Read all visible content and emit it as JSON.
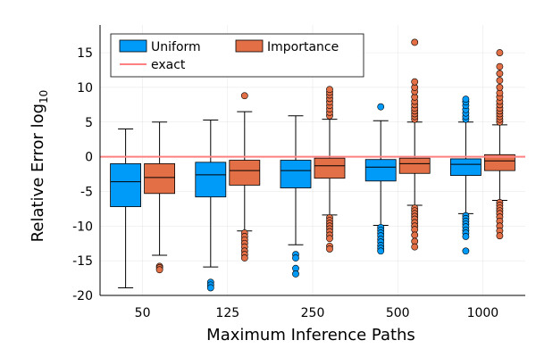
{
  "chart_data": {
    "type": "box",
    "xlabel": "Maximum Inference Paths",
    "ylabel_main": "Relative Error log",
    "ylabel_sub": "10",
    "ylim": [
      -20,
      19
    ],
    "yticks": [
      -20,
      -15,
      -10,
      -5,
      0,
      5,
      10,
      15
    ],
    "categories": [
      "50",
      "125",
      "250",
      "500",
      "1000"
    ],
    "exact_line": {
      "name": "exact",
      "y": 0,
      "color": "#ff8080"
    },
    "legend": {
      "position": "top-left",
      "columns": 2
    },
    "series": [
      {
        "name": "Uniform",
        "color": "#009af9",
        "boxes": [
          {
            "whisker_low": -18.9,
            "q1": -7.2,
            "median": -3.6,
            "q3": -1.0,
            "whisker_high": 4.0,
            "outliers": []
          },
          {
            "whisker_low": -15.9,
            "q1": -5.8,
            "median": -2.6,
            "q3": -0.8,
            "whisker_high": 5.3,
            "outliers": [
              -18.1,
              -18.5,
              -18.9
            ]
          },
          {
            "whisker_low": -12.7,
            "q1": -4.5,
            "median": -2.0,
            "q3": -0.5,
            "whisker_high": 5.9,
            "outliers": [
              -14.1,
              -14.6,
              -16.1,
              -16.9
            ]
          },
          {
            "whisker_low": -9.9,
            "q1": -3.5,
            "median": -1.5,
            "q3": -0.4,
            "whisker_high": 5.2,
            "outliers": [
              7.2,
              -10.2,
              -10.6,
              -11.0,
              -11.4,
              -11.9,
              -12.3,
              -12.8,
              -13.2,
              -13.6
            ]
          },
          {
            "whisker_low": -8.2,
            "q1": -2.7,
            "median": -1.1,
            "q3": -0.3,
            "whisker_high": 5.0,
            "outliers": [
              5.4,
              5.8,
              6.3,
              6.8,
              7.4,
              7.9,
              8.3,
              -8.5,
              -8.9,
              -9.3,
              -9.7,
              -10.1,
              -10.6,
              -11.0,
              -11.5,
              -13.6
            ]
          }
        ]
      },
      {
        "name": "Importance",
        "color": "#e26f46",
        "boxes": [
          {
            "whisker_low": -14.2,
            "q1": -5.3,
            "median": -3.0,
            "q3": -1.0,
            "whisker_high": 5.0,
            "outliers": [
              -15.8,
              -16.0,
              -16.3
            ]
          },
          {
            "whisker_low": -10.7,
            "q1": -4.1,
            "median": -2.0,
            "q3": -0.5,
            "whisker_high": 6.5,
            "outliers": [
              8.8,
              -11.0,
              -11.5,
              -12.0,
              -12.5,
              -13.0,
              -13.6,
              -14.1,
              -14.6
            ]
          },
          {
            "whisker_low": -8.4,
            "q1": -3.1,
            "median": -1.3,
            "q3": -0.2,
            "whisker_high": 5.4,
            "outliers": [
              5.9,
              6.4,
              6.9,
              7.4,
              7.9,
              8.4,
              8.9,
              9.3,
              9.7,
              -8.8,
              -9.2,
              -9.6,
              -10.0,
              -10.4,
              -10.8,
              -11.3,
              -11.8,
              -12.9,
              -13.3
            ]
          },
          {
            "whisker_low": -7.0,
            "q1": -2.4,
            "median": -1.0,
            "q3": -0.2,
            "whisker_high": 5.0,
            "outliers": [
              5.4,
              5.8,
              6.2,
              6.6,
              7.0,
              7.5,
              8.0,
              8.6,
              9.4,
              10.0,
              10.8,
              16.5,
              -7.4,
              -7.8,
              -8.2,
              -8.6,
              -9.0,
              -9.5,
              -10.0,
              -10.5,
              -11.3,
              -12.2,
              -13.0
            ]
          },
          {
            "whisker_low": -6.3,
            "q1": -2.0,
            "median": -0.6,
            "q3": 0.3,
            "whisker_high": 4.6,
            "outliers": [
              5.0,
              5.4,
              5.8,
              6.2,
              6.6,
              7.0,
              7.5,
              8.0,
              8.6,
              9.2,
              10.0,
              11.0,
              12.0,
              13.0,
              15.0,
              -6.6,
              -7.0,
              -7.4,
              -7.8,
              -8.2,
              -8.7,
              -9.3,
              -10.0,
              -10.7,
              -11.4
            ]
          }
        ]
      }
    ]
  }
}
